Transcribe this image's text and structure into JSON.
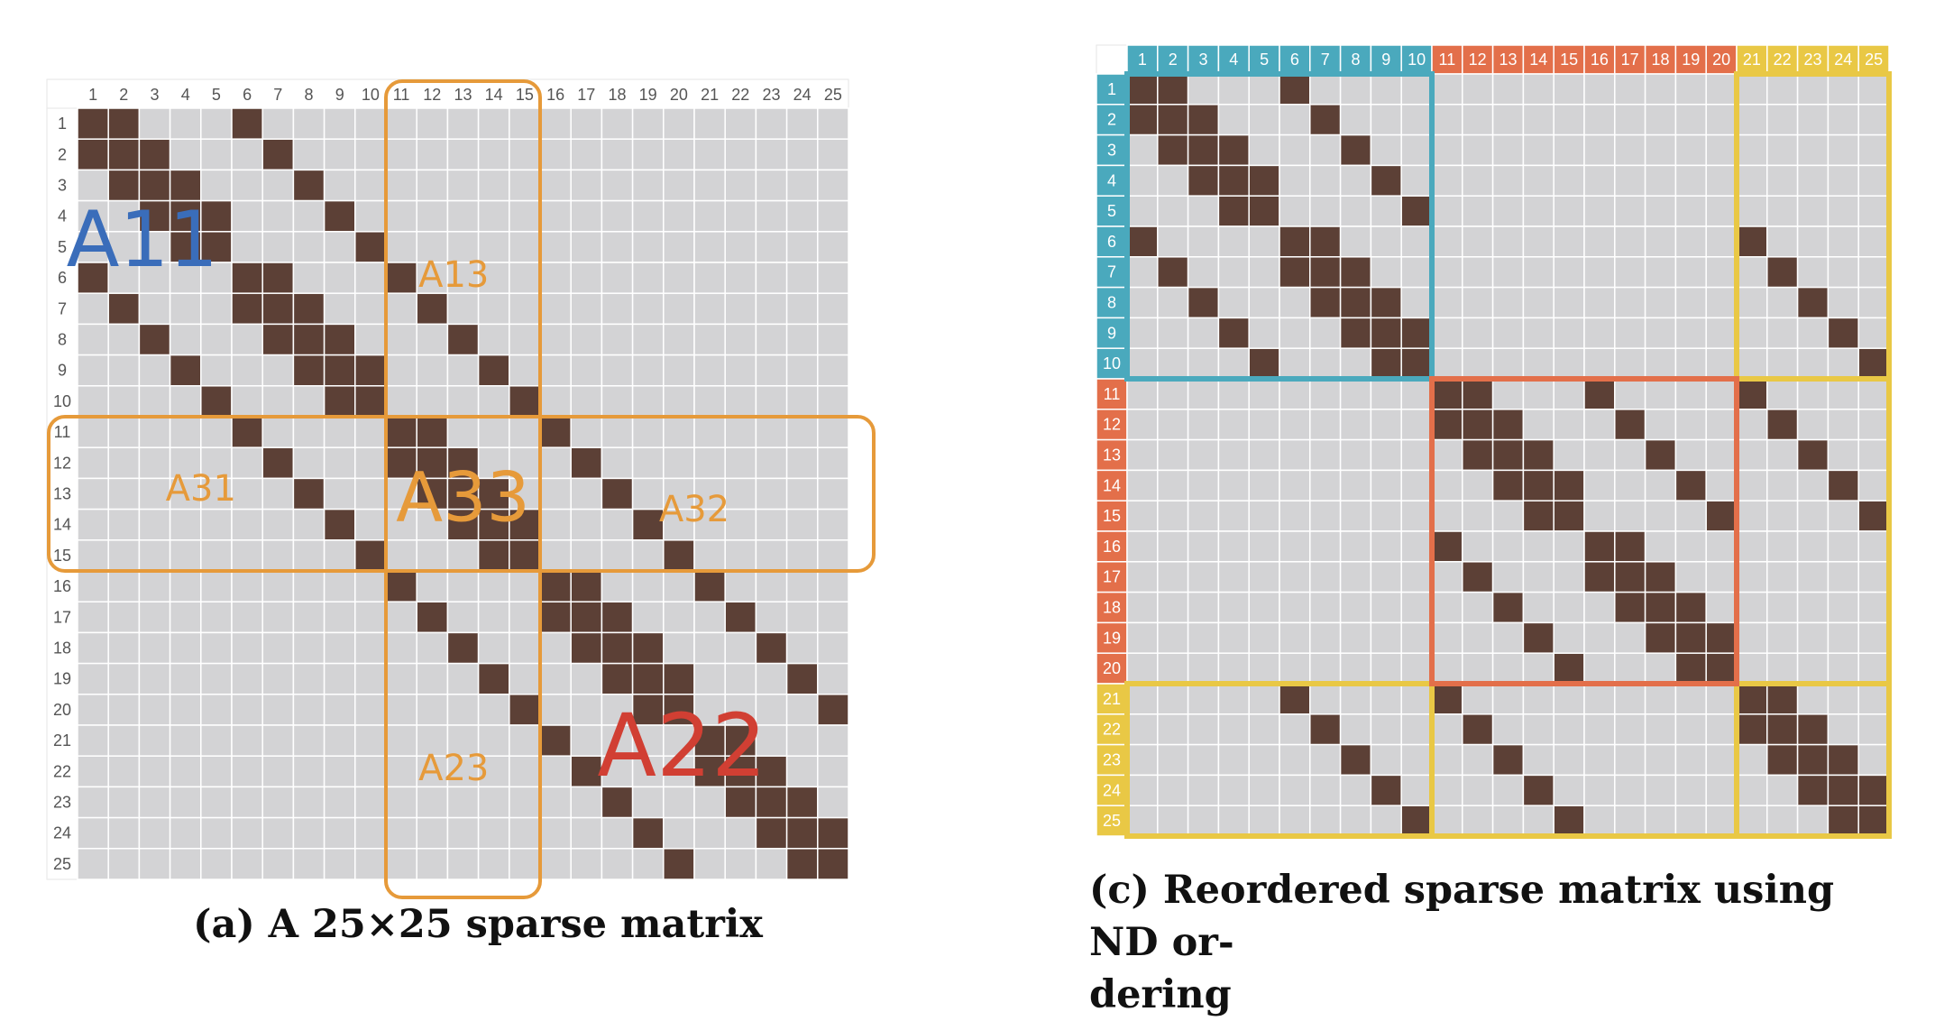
{
  "matrix_size": 25,
  "colors": {
    "empty_cell": "#d3d3d5",
    "nonzero_cell": "#5c4036",
    "grid_line": "#ffffff",
    "header_bg": "#f2f2f2",
    "header_text": "#555555",
    "partition_orange": "#e69a3a",
    "a11_blue": "#3a6dba",
    "a22_red": "#d13f33",
    "c_blue": "#4aa9bd",
    "c_orange": "#e36f4a",
    "c_yellow": "#e9c845"
  },
  "row_labels": [
    "1",
    "2",
    "3",
    "4",
    "5",
    "6",
    "7",
    "8",
    "9",
    "10",
    "11",
    "12",
    "13",
    "14",
    "15",
    "16",
    "17",
    "18",
    "19",
    "20",
    "21",
    "22",
    "23",
    "24",
    "25"
  ],
  "col_labels": [
    "1",
    "2",
    "3",
    "4",
    "5",
    "6",
    "7",
    "8",
    "9",
    "10",
    "11",
    "12",
    "13",
    "14",
    "15",
    "16",
    "17",
    "18",
    "19",
    "20",
    "21",
    "22",
    "23",
    "24",
    "25"
  ],
  "panel_a": {
    "caption": "(a) A 25×25 sparse matrix",
    "block_labels": {
      "A11": "A11",
      "A13": "A13",
      "A31": "A31",
      "A33": "A33",
      "A32": "A32",
      "A23": "A23",
      "A22": "A22"
    },
    "nonzeros": [
      [
        1,
        1
      ],
      [
        1,
        2
      ],
      [
        1,
        6
      ],
      [
        2,
        1
      ],
      [
        2,
        2
      ],
      [
        2,
        3
      ],
      [
        2,
        7
      ],
      [
        3,
        2
      ],
      [
        3,
        3
      ],
      [
        3,
        4
      ],
      [
        3,
        8
      ],
      [
        4,
        3
      ],
      [
        4,
        4
      ],
      [
        4,
        5
      ],
      [
        4,
        9
      ],
      [
        5,
        4
      ],
      [
        5,
        5
      ],
      [
        5,
        10
      ],
      [
        6,
        1
      ],
      [
        6,
        6
      ],
      [
        6,
        7
      ],
      [
        6,
        11
      ],
      [
        7,
        2
      ],
      [
        7,
        6
      ],
      [
        7,
        7
      ],
      [
        7,
        8
      ],
      [
        7,
        12
      ],
      [
        8,
        3
      ],
      [
        8,
        7
      ],
      [
        8,
        8
      ],
      [
        8,
        9
      ],
      [
        8,
        13
      ],
      [
        9,
        4
      ],
      [
        9,
        8
      ],
      [
        9,
        9
      ],
      [
        9,
        10
      ],
      [
        9,
        14
      ],
      [
        10,
        5
      ],
      [
        10,
        9
      ],
      [
        10,
        10
      ],
      [
        10,
        15
      ],
      [
        11,
        6
      ],
      [
        11,
        11
      ],
      [
        11,
        12
      ],
      [
        11,
        16
      ],
      [
        12,
        7
      ],
      [
        12,
        11
      ],
      [
        12,
        12
      ],
      [
        12,
        13
      ],
      [
        12,
        17
      ],
      [
        13,
        8
      ],
      [
        13,
        12
      ],
      [
        13,
        13
      ],
      [
        13,
        14
      ],
      [
        13,
        18
      ],
      [
        14,
        9
      ],
      [
        14,
        13
      ],
      [
        14,
        14
      ],
      [
        14,
        15
      ],
      [
        14,
        19
      ],
      [
        15,
        10
      ],
      [
        15,
        14
      ],
      [
        15,
        15
      ],
      [
        15,
        20
      ],
      [
        16,
        11
      ],
      [
        16,
        16
      ],
      [
        16,
        17
      ],
      [
        16,
        21
      ],
      [
        17,
        12
      ],
      [
        17,
        16
      ],
      [
        17,
        17
      ],
      [
        17,
        18
      ],
      [
        17,
        22
      ],
      [
        18,
        13
      ],
      [
        18,
        17
      ],
      [
        18,
        18
      ],
      [
        18,
        19
      ],
      [
        18,
        23
      ],
      [
        19,
        14
      ],
      [
        19,
        18
      ],
      [
        19,
        19
      ],
      [
        19,
        20
      ],
      [
        19,
        24
      ],
      [
        20,
        15
      ],
      [
        20,
        19
      ],
      [
        20,
        20
      ],
      [
        20,
        25
      ],
      [
        21,
        16
      ],
      [
        21,
        21
      ],
      [
        21,
        22
      ],
      [
        22,
        17
      ],
      [
        22,
        21
      ],
      [
        22,
        22
      ],
      [
        22,
        23
      ],
      [
        23,
        18
      ],
      [
        23,
        22
      ],
      [
        23,
        23
      ],
      [
        23,
        24
      ],
      [
        24,
        19
      ],
      [
        24,
        23
      ],
      [
        24,
        24
      ],
      [
        24,
        25
      ],
      [
        25,
        20
      ],
      [
        25,
        24
      ],
      [
        25,
        25
      ]
    ]
  },
  "panel_c": {
    "caption": "(c) Reordered sparse matrix using ND ordering",
    "caption_line1": "(c) Reordered sparse matrix using ND or-",
    "caption_line2": "dering",
    "nonzeros": [
      [
        1,
        1
      ],
      [
        1,
        2
      ],
      [
        1,
        6
      ],
      [
        2,
        1
      ],
      [
        2,
        2
      ],
      [
        2,
        3
      ],
      [
        2,
        7
      ],
      [
        3,
        2
      ],
      [
        3,
        3
      ],
      [
        3,
        4
      ],
      [
        3,
        8
      ],
      [
        4,
        3
      ],
      [
        4,
        4
      ],
      [
        4,
        5
      ],
      [
        4,
        9
      ],
      [
        5,
        4
      ],
      [
        5,
        5
      ],
      [
        5,
        10
      ],
      [
        6,
        1
      ],
      [
        6,
        6
      ],
      [
        6,
        7
      ],
      [
        6,
        21
      ],
      [
        7,
        2
      ],
      [
        7,
        6
      ],
      [
        7,
        7
      ],
      [
        7,
        8
      ],
      [
        7,
        22
      ],
      [
        8,
        3
      ],
      [
        8,
        7
      ],
      [
        8,
        8
      ],
      [
        8,
        9
      ],
      [
        8,
        23
      ],
      [
        9,
        4
      ],
      [
        9,
        8
      ],
      [
        9,
        9
      ],
      [
        9,
        10
      ],
      [
        9,
        24
      ],
      [
        10,
        5
      ],
      [
        10,
        9
      ],
      [
        10,
        10
      ],
      [
        10,
        25
      ],
      [
        11,
        11
      ],
      [
        11,
        12
      ],
      [
        11,
        16
      ],
      [
        11,
        21
      ],
      [
        12,
        11
      ],
      [
        12,
        12
      ],
      [
        12,
        13
      ],
      [
        12,
        17
      ],
      [
        12,
        22
      ],
      [
        13,
        12
      ],
      [
        13,
        13
      ],
      [
        13,
        14
      ],
      [
        13,
        18
      ],
      [
        13,
        23
      ],
      [
        14,
        13
      ],
      [
        14,
        14
      ],
      [
        14,
        15
      ],
      [
        14,
        19
      ],
      [
        14,
        24
      ],
      [
        15,
        14
      ],
      [
        15,
        15
      ],
      [
        15,
        20
      ],
      [
        15,
        25
      ],
      [
        16,
        11
      ],
      [
        16,
        16
      ],
      [
        16,
        17
      ],
      [
        17,
        12
      ],
      [
        17,
        16
      ],
      [
        17,
        17
      ],
      [
        17,
        18
      ],
      [
        18,
        13
      ],
      [
        18,
        17
      ],
      [
        18,
        18
      ],
      [
        18,
        19
      ],
      [
        19,
        14
      ],
      [
        19,
        18
      ],
      [
        19,
        19
      ],
      [
        19,
        20
      ],
      [
        20,
        15
      ],
      [
        20,
        19
      ],
      [
        20,
        20
      ],
      [
        21,
        6
      ],
      [
        21,
        11
      ],
      [
        21,
        21
      ],
      [
        21,
        22
      ],
      [
        22,
        7
      ],
      [
        22,
        12
      ],
      [
        22,
        21
      ],
      [
        22,
        22
      ],
      [
        22,
        23
      ],
      [
        23,
        8
      ],
      [
        23,
        13
      ],
      [
        23,
        22
      ],
      [
        23,
        23
      ],
      [
        23,
        24
      ],
      [
        24,
        9
      ],
      [
        24,
        14
      ],
      [
        24,
        23
      ],
      [
        24,
        24
      ],
      [
        24,
        25
      ],
      [
        25,
        10
      ],
      [
        25,
        15
      ],
      [
        25,
        24
      ],
      [
        25,
        25
      ]
    ]
  }
}
